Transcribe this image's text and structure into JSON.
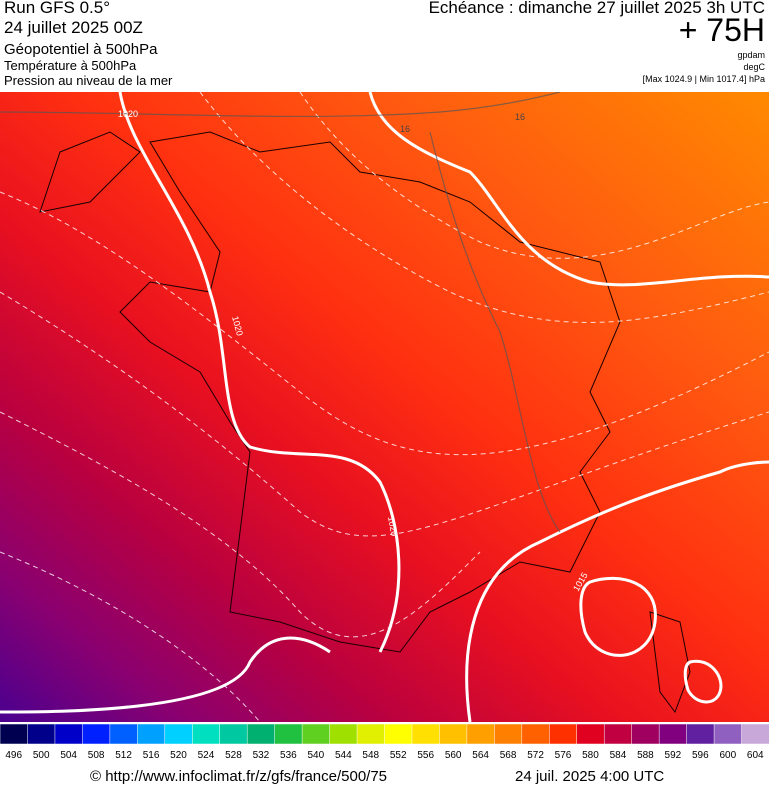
{
  "header": {
    "run": "Run GFS 0.5°",
    "run_date": "24 juillet 2025 00Z",
    "field_1": "Géopotentiel à 500hPa",
    "field_2": "Température à 500hPa",
    "field_3": "Pression au niveau de la mer",
    "valid": "Echéance : dimanche 27 juillet 2025 3h UTC",
    "lead": "+ 75H",
    "unit_1": "gpdam",
    "unit_2": "degC",
    "range": "[Max 1024.9 | Min 1017.4] hPa"
  },
  "map": {
    "contour_labels": [
      "1020",
      "1020",
      "1020",
      "1015",
      "16",
      "16"
    ]
  },
  "colorbar": {
    "labels": [
      496,
      500,
      504,
      508,
      512,
      516,
      520,
      524,
      528,
      532,
      536,
      540,
      544,
      548,
      552,
      556,
      560,
      564,
      568,
      572,
      576,
      580,
      584,
      588,
      592,
      596,
      600,
      604
    ],
    "colors": [
      "#000050",
      "#00008a",
      "#0000c8",
      "#0020ff",
      "#0060ff",
      "#00a0ff",
      "#00d0ff",
      "#00e0c0",
      "#00c8a0",
      "#00b070",
      "#20c040",
      "#60d020",
      "#a0e000",
      "#e0f000",
      "#ffff00",
      "#ffe000",
      "#ffc000",
      "#ffa000",
      "#ff8000",
      "#ff6000",
      "#ff3000",
      "#e00020",
      "#c00040",
      "#a00060",
      "#800080",
      "#6020a0",
      "#9060c0",
      "#c8a8d8"
    ]
  },
  "footer": {
    "source": "© http://www.infoclimat.fr/z/gfs/france/500/75",
    "time": "24 juil. 2025  4:00 UTC"
  }
}
